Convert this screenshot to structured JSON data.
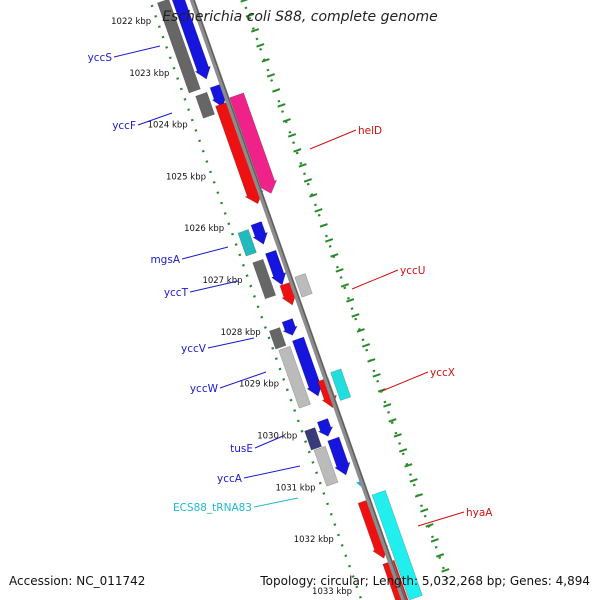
{
  "title": "Escherichia coli S88, complete genome",
  "footer": {
    "accession": "Accession: NC_011742",
    "topology": "Topology: circular; Length: 5,032,268 bp; Genes: 4,894"
  },
  "colors": {
    "backbone": "#8c8c8c",
    "tick": "#2a8a2a",
    "label_blue": "#1a1acc",
    "label_red": "#d01010",
    "label_cyan": "#20b8d0"
  },
  "ticks": [
    "1022 kbp",
    "1023 kbp",
    "1024 kbp",
    "1025 kbp",
    "1026 kbp",
    "1027 kbp",
    "1028 kbp",
    "1029 kbp",
    "1030 kbp",
    "1031 kbp",
    "1032 kbp",
    "1033 kbp"
  ],
  "genes_left": [
    "yccS",
    "yccF",
    "mgsA",
    "yccT",
    "yccV",
    "yccW",
    "tusE",
    "yccA",
    "ECS88_tRNA83"
  ],
  "genes_right": [
    "helD",
    "yccU",
    "yccX",
    "hyaA"
  ]
}
